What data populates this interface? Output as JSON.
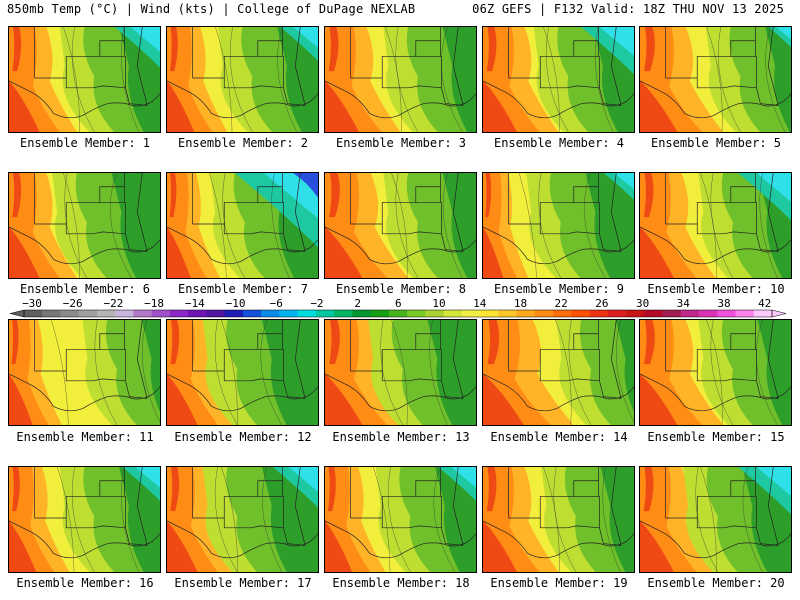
{
  "header": {
    "left": "850mb Temp (°C) | Wind (kts) | College of DuPage NEXLAB",
    "right": "06Z GEFS | F132 Valid: 18Z THU NOV 13 2025"
  },
  "members": [
    {
      "label": "Ensemble Member: 1",
      "green_extent": 0.5,
      "cold_corner": 0.3,
      "warm_extent": 0.45
    },
    {
      "label": "Ensemble Member: 2",
      "green_extent": 0.5,
      "cold_corner": 0.25,
      "warm_extent": 0.4
    },
    {
      "label": "Ensemble Member: 3",
      "green_extent": 0.45,
      "cold_corner": 0.0,
      "warm_extent": 0.5
    },
    {
      "label": "Ensemble Member: 4",
      "green_extent": 0.5,
      "cold_corner": 0.35,
      "warm_extent": 0.5
    },
    {
      "label": "Ensemble Member: 5",
      "green_extent": 0.4,
      "cold_corner": 0.15,
      "warm_extent": 0.55
    },
    {
      "label": "Ensemble Member: 6",
      "green_extent": 0.55,
      "cold_corner": 0.0,
      "warm_extent": 0.45
    },
    {
      "label": "Ensemble Member: 7",
      "green_extent": 0.55,
      "cold_corner": 0.55,
      "warm_extent": 0.35
    },
    {
      "label": "Ensemble Member: 8",
      "green_extent": 0.45,
      "cold_corner": 0.0,
      "warm_extent": 0.55
    },
    {
      "label": "Ensemble Member: 9",
      "green_extent": 0.55,
      "cold_corner": 0.2,
      "warm_extent": 0.3
    },
    {
      "label": "Ensemble Member: 10",
      "green_extent": 0.45,
      "cold_corner": 0.35,
      "warm_extent": 0.5
    },
    {
      "label": "Ensemble Member: 11",
      "green_extent": 0.35,
      "cold_corner": 0.0,
      "warm_extent": 0.35
    },
    {
      "label": "Ensemble Member: 12",
      "green_extent": 0.6,
      "cold_corner": 0.0,
      "warm_extent": 0.45
    },
    {
      "label": "Ensemble Member: 13",
      "green_extent": 0.55,
      "cold_corner": 0.0,
      "warm_extent": 0.55
    },
    {
      "label": "Ensemble Member: 14",
      "green_extent": 0.35,
      "cold_corner": 0.0,
      "warm_extent": 0.6
    },
    {
      "label": "Ensemble Member: 15",
      "green_extent": 0.45,
      "cold_corner": 0.0,
      "warm_extent": 0.55
    },
    {
      "label": "Ensemble Member: 16",
      "green_extent": 0.5,
      "cold_corner": 0.25,
      "warm_extent": 0.4
    },
    {
      "label": "Ensemble Member: 17",
      "green_extent": 0.6,
      "cold_corner": 0.3,
      "warm_extent": 0.45
    },
    {
      "label": "Ensemble Member: 18",
      "green_extent": 0.5,
      "cold_corner": 0.25,
      "warm_extent": 0.4
    },
    {
      "label": "Ensemble Member: 19",
      "green_extent": 0.45,
      "cold_corner": 0.0,
      "warm_extent": 0.5
    },
    {
      "label": "Ensemble Member: 20",
      "green_extent": 0.55,
      "cold_corner": 0.35,
      "warm_extent": 0.5
    }
  ],
  "colorbar": {
    "tick_labels": [
      "−30",
      "−26",
      "−22",
      "−18",
      "−14",
      "−10",
      "−6",
      "−2",
      "2",
      "6",
      "10",
      "14",
      "18",
      "22",
      "26",
      "30",
      "34",
      "38",
      "42"
    ],
    "colors": [
      "#5f5f5f",
      "#787878",
      "#8c8c8c",
      "#a0a0a0",
      "#b4b4b4",
      "#c8b4dc",
      "#b478c8",
      "#a050c8",
      "#8c28c8",
      "#6e14b4",
      "#5014a0",
      "#1e1eb4",
      "#1450dc",
      "#0a8ce6",
      "#00b4f0",
      "#00dcdc",
      "#00c8a0",
      "#00b464",
      "#009632",
      "#14a014",
      "#46b41e",
      "#78c828",
      "#aad232",
      "#d2e63c",
      "#f0f046",
      "#ffe632",
      "#ffc828",
      "#ffaa1e",
      "#ff8c14",
      "#ff6e0a",
      "#ff5000",
      "#f03214",
      "#dc1e1e",
      "#c81414",
      "#b40a28",
      "#a01e50",
      "#be288c",
      "#dc32b4",
      "#f050dc",
      "#ff82f0",
      "#ffc8ff"
    ]
  },
  "palette": {
    "red": "#f04a14",
    "orange": "#ff8c14",
    "amber": "#ffb428",
    "yellow": "#f2ee3c",
    "lime": "#bede32",
    "green": "#6fc02a",
    "dkgreen": "#2e9e2a",
    "teal": "#1ec8a0",
    "cyan": "#30e0e8",
    "blue": "#2850dc"
  }
}
